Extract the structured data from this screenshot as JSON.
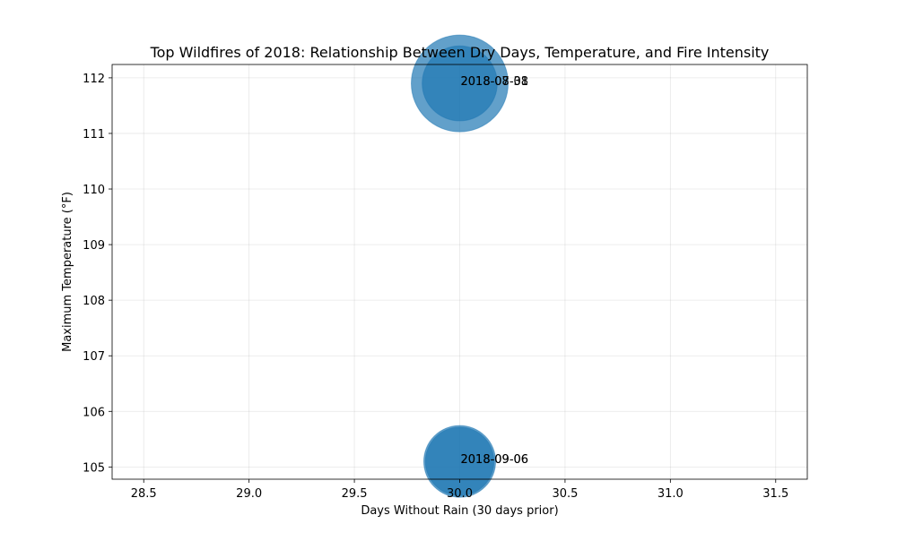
{
  "chart_data": {
    "type": "scatter",
    "title": "Top Wildfires of 2018: Relationship Between Dry Days, Temperature, and Fire Intensity",
    "xlabel": "Days Without Rain (30 days prior)",
    "ylabel": "Maximum Temperature (°F)",
    "xlim": [
      28.35,
      31.65
    ],
    "ylim": [
      104.78,
      112.24
    ],
    "xticks": [
      28.5,
      29.0,
      29.5,
      30.0,
      30.5,
      31.0,
      31.5
    ],
    "xtick_labels": [
      "28.5",
      "29.0",
      "29.5",
      "30.0",
      "30.5",
      "31.0",
      "31.5"
    ],
    "yticks": [
      105,
      106,
      107,
      108,
      109,
      110,
      111,
      112
    ],
    "ytick_labels": [
      "105",
      "106",
      "107",
      "108",
      "109",
      "110",
      "111",
      "112"
    ],
    "grid": true,
    "marker_color": "#1f77b4",
    "marker_alpha": 0.7,
    "points": [
      {
        "x": 30,
        "y": 111.9,
        "label": "2018-08-08",
        "size": 1.0
      },
      {
        "x": 30,
        "y": 111.9,
        "label": "2018-07-31",
        "size": 0.6
      },
      {
        "x": 30,
        "y": 105.1,
        "label": "2018-09-06",
        "size": 0.55
      },
      {
        "x": 30,
        "y": 105.1,
        "label": "2018-09-06",
        "size": 0.5
      }
    ]
  }
}
